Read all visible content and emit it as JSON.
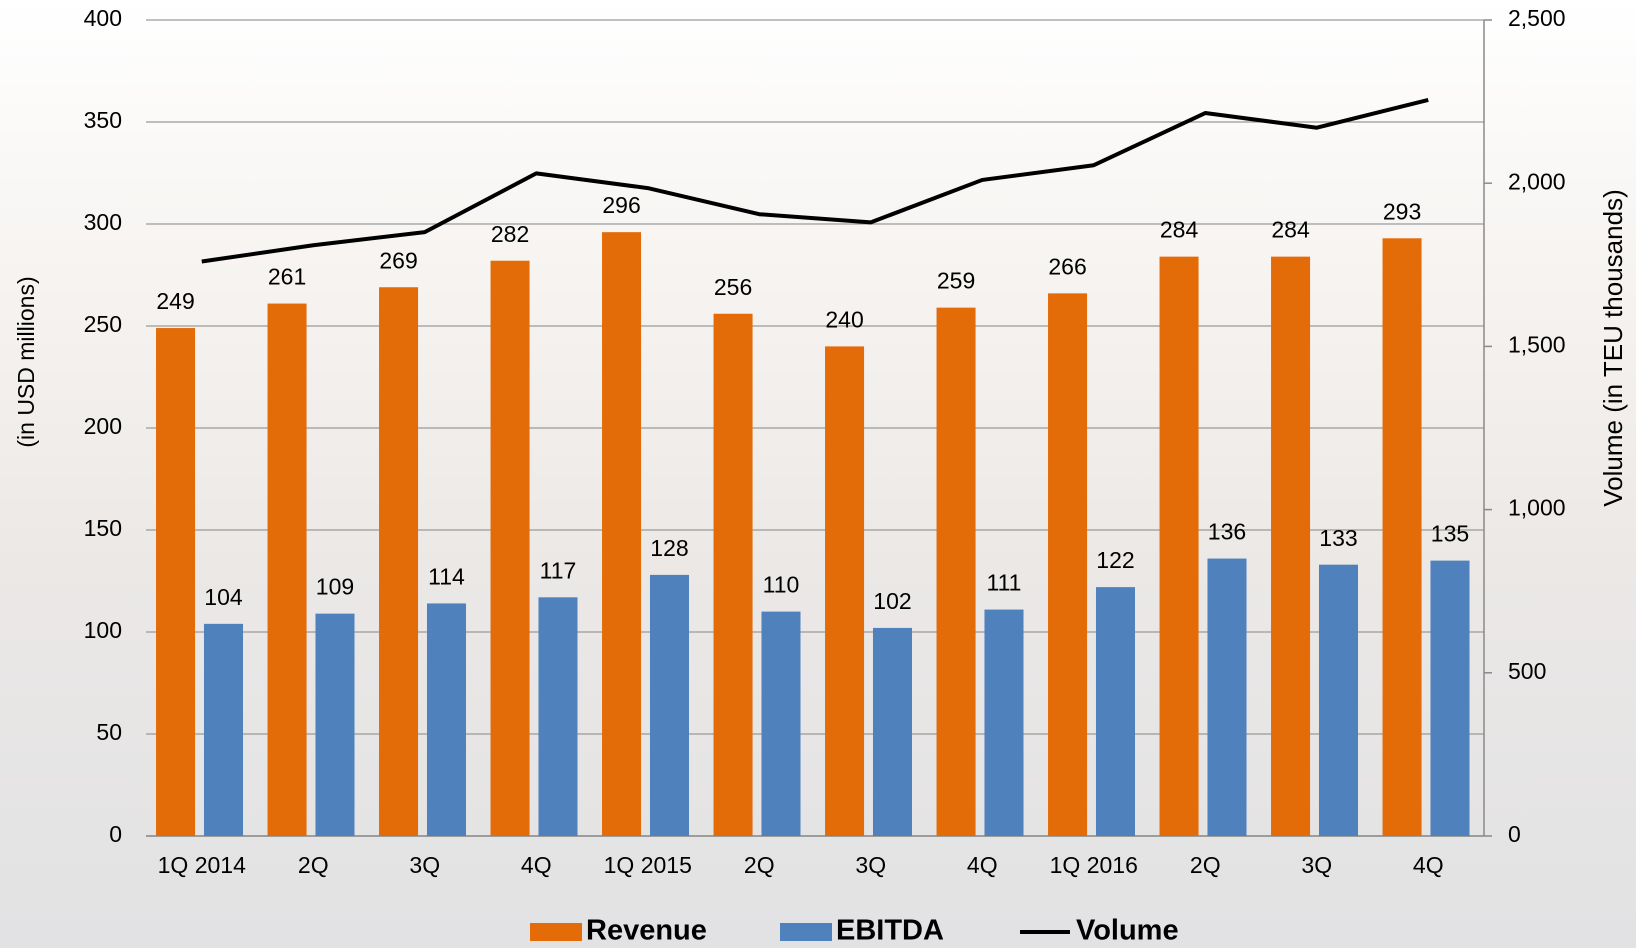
{
  "chart_data": {
    "type": "bar",
    "categories": [
      "1Q 2014",
      "2Q",
      "3Q",
      "4Q",
      "1Q 2015",
      "2Q",
      "3Q",
      "4Q",
      "1Q 2016",
      "2Q",
      "3Q",
      "4Q"
    ],
    "y_axis_label": "(in USD millions)",
    "y2_axis_label": "Volume (in TEU thousands)",
    "series": [
      {
        "name": "Revenue",
        "type": "bar",
        "color": "#e36c09",
        "values": [
          249,
          261,
          269,
          282,
          296,
          256,
          240,
          259,
          266,
          284,
          284,
          293
        ]
      },
      {
        "name": "EBITDA",
        "type": "bar",
        "color": "#4f81bd",
        "values": [
          104,
          109,
          114,
          117,
          128,
          110,
          102,
          111,
          122,
          136,
          133,
          135
        ]
      },
      {
        "name": "Volume",
        "type": "line",
        "axis": "y2",
        "color": "#000000",
        "values": [
          1760,
          1810,
          1850,
          2030,
          1985,
          1905,
          1880,
          2010,
          2055,
          2215,
          2170,
          2255
        ]
      }
    ],
    "ylim": [
      0,
      400
    ],
    "yticks": [
      0,
      50,
      100,
      150,
      200,
      250,
      300,
      350,
      400
    ],
    "y2lim": [
      0,
      2500
    ],
    "y2ticks": [
      0,
      500,
      {
        "value": 1000,
        "label": "1,000"
      },
      {
        "value": 1500,
        "label": "1,500"
      },
      {
        "value": 2000,
        "label": "2,000"
      },
      {
        "value": 2500,
        "label": "2,500"
      }
    ],
    "grid": true,
    "legend": "bottom"
  }
}
